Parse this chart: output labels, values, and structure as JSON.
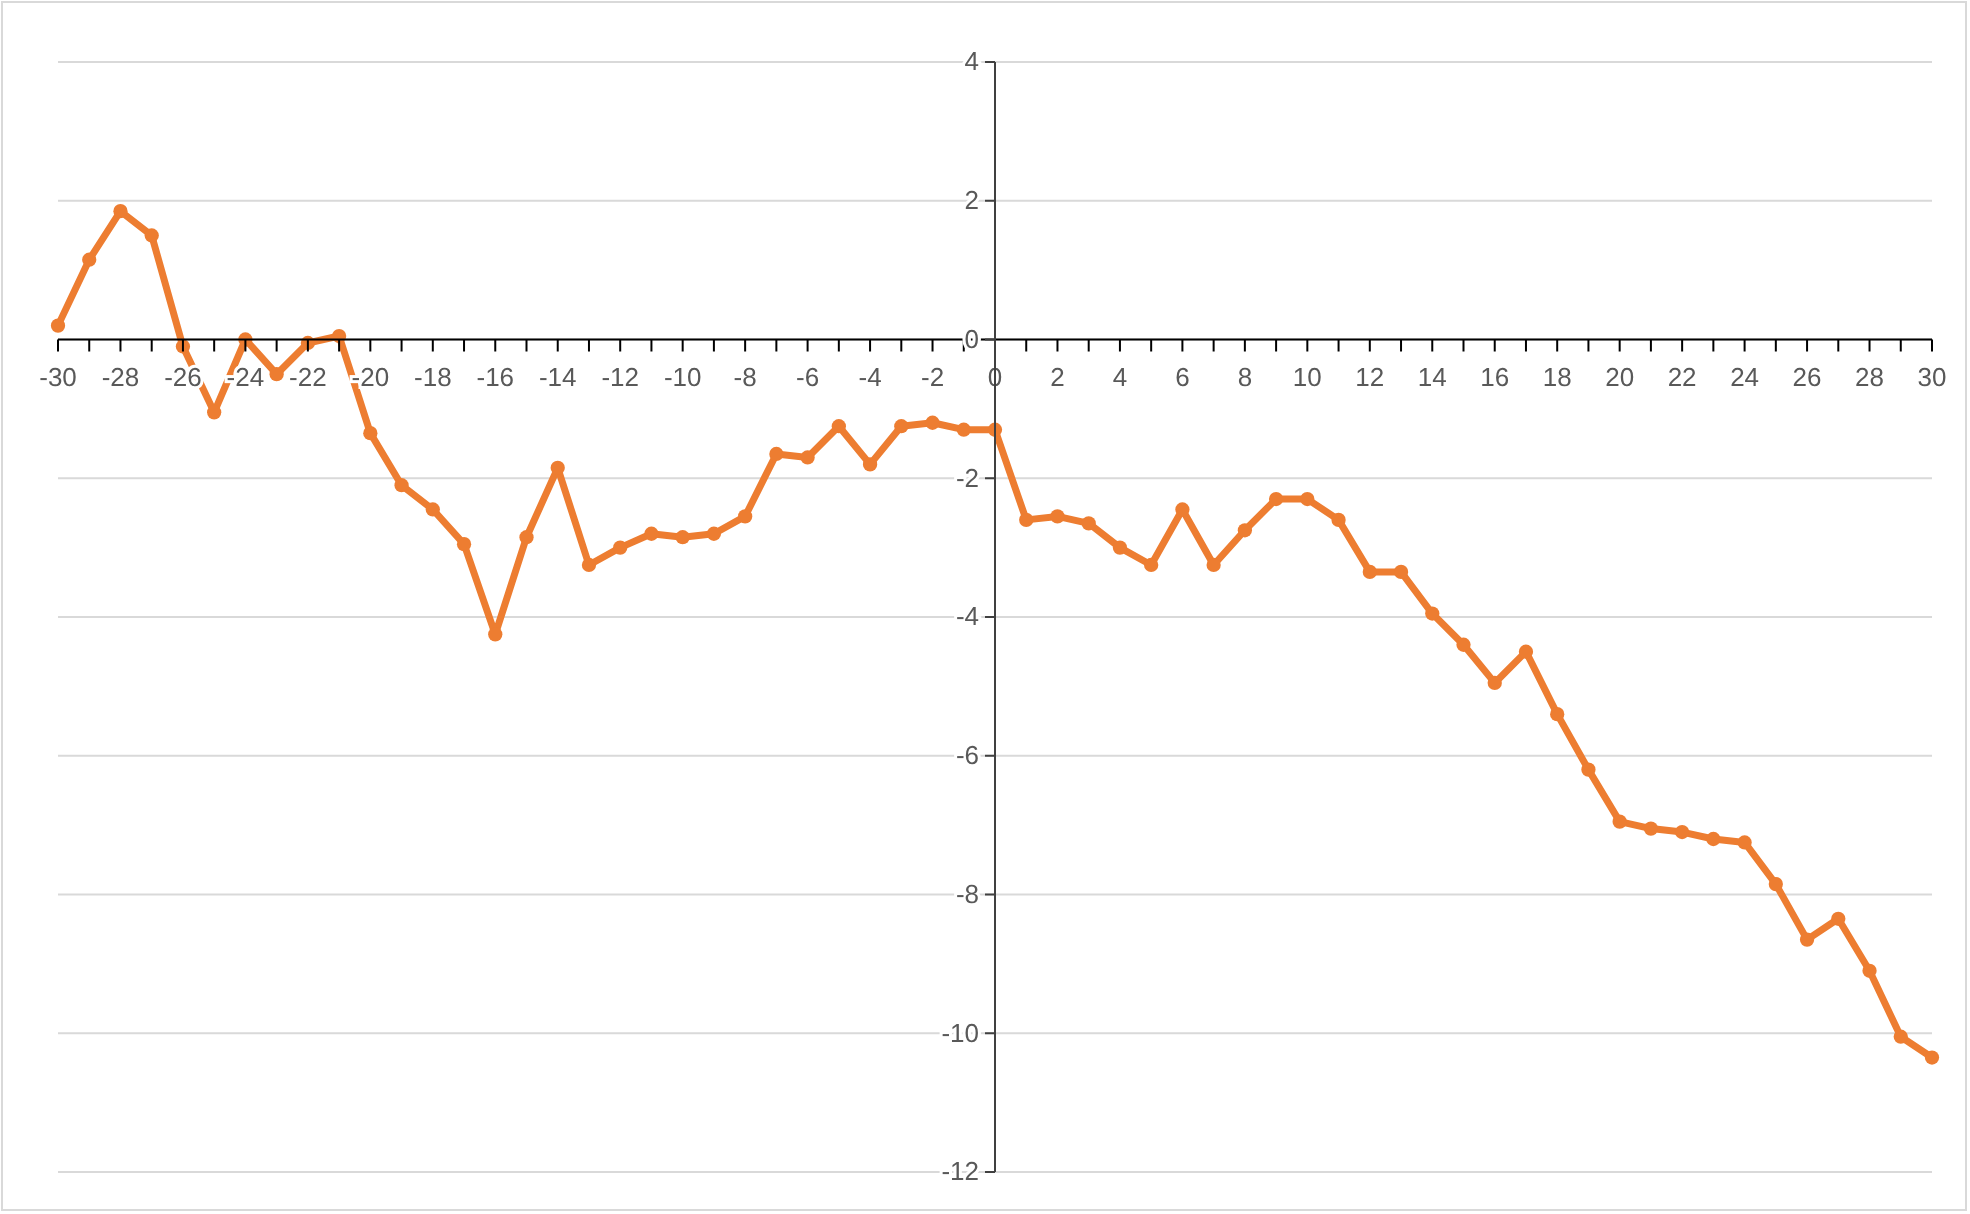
{
  "chart_data": {
    "type": "line",
    "x": [
      -30,
      -29,
      -28,
      -27,
      -26,
      -25,
      -24,
      -23,
      -22,
      -21,
      -20,
      -19,
      -18,
      -17,
      -16,
      -15,
      -14,
      -13,
      -12,
      -11,
      -10,
      -9,
      -8,
      -7,
      -6,
      -5,
      -4,
      -3,
      -2,
      -1,
      0,
      1,
      2,
      3,
      4,
      5,
      6,
      7,
      8,
      9,
      10,
      11,
      12,
      13,
      14,
      15,
      16,
      17,
      18,
      19,
      20,
      21,
      22,
      23,
      24,
      25,
      26,
      27,
      28,
      29,
      30
    ],
    "series": [
      {
        "color": "#ed7d31",
        "values": [
          0.2,
          1.15,
          1.85,
          1.5,
          -0.1,
          -1.05,
          0.0,
          -0.5,
          -0.05,
          0.05,
          -1.35,
          -2.1,
          -2.45,
          -2.95,
          -4.25,
          -2.85,
          -1.85,
          -3.25,
          -3.0,
          -2.8,
          -2.85,
          -2.8,
          -2.55,
          -1.65,
          -1.7,
          -1.25,
          -1.8,
          -1.25,
          -1.2,
          -1.3,
          -1.3,
          -2.6,
          -2.55,
          -2.65,
          -3.0,
          -3.25,
          -2.45,
          -3.25,
          -2.75,
          -2.3,
          -2.3,
          -2.6,
          -3.35,
          -3.35,
          -3.95,
          -4.4,
          -4.95,
          -4.5,
          -5.4,
          -6.2,
          -6.95,
          -7.05,
          -7.1,
          -7.2,
          -7.25,
          -7.85,
          -8.65,
          -8.35,
          -9.1,
          -10.05,
          -10.35
        ]
      }
    ],
    "xlim": [
      -30,
      30
    ],
    "xticks": [
      -30,
      {
        "value": -29,
        "label": null
      },
      -28,
      {
        "value": -27,
        "label": null
      },
      -26,
      {
        "value": -25,
        "label": null
      },
      -24,
      {
        "value": -23,
        "label": null
      },
      -22,
      {
        "value": -21,
        "label": null
      },
      -20,
      {
        "value": -19,
        "label": null
      },
      -18,
      {
        "value": -17,
        "label": null
      },
      -16,
      {
        "value": -15,
        "label": null
      },
      -14,
      {
        "value": -13,
        "label": null
      },
      -12,
      {
        "value": -11,
        "label": null
      },
      -10,
      {
        "value": -9,
        "label": null
      },
      -8,
      {
        "value": -7,
        "label": null
      },
      -6,
      {
        "value": -5,
        "label": null
      },
      -4,
      {
        "value": -3,
        "label": null
      },
      -2,
      {
        "value": -1,
        "label": null
      },
      0,
      {
        "value": 1,
        "label": null
      },
      2,
      {
        "value": 3,
        "label": null
      },
      4,
      {
        "value": 5,
        "label": null
      },
      6,
      {
        "value": 7,
        "label": null
      },
      8,
      {
        "value": 9,
        "label": null
      },
      10,
      {
        "value": 11,
        "label": null
      },
      12,
      {
        "value": 13,
        "label": null
      },
      14,
      {
        "value": 15,
        "label": null
      },
      16,
      {
        "value": 17,
        "label": null
      },
      18,
      {
        "value": 19,
        "label": null
      },
      20,
      {
        "value": 21,
        "label": null
      },
      22,
      {
        "value": 23,
        "label": null
      },
      24,
      {
        "value": 25,
        "label": null
      },
      26,
      {
        "value": 27,
        "label": null
      },
      28,
      {
        "value": 29,
        "label": null
      },
      30
    ],
    "ylim": [
      -12,
      4
    ],
    "yticks": [
      -12,
      -10,
      -8,
      -6,
      -4,
      -2,
      0,
      2,
      4
    ],
    "grid": "y",
    "marker": "circle",
    "line_style": "solid"
  }
}
